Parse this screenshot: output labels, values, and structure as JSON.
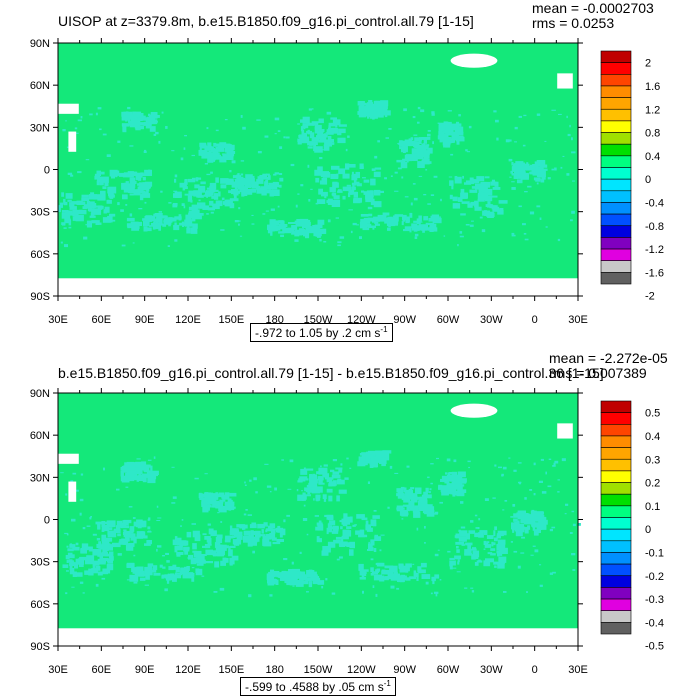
{
  "chart_data": [
    {
      "type": "heatmap",
      "title": "UISOP at z=3379.8m, b.e15.B1850.f09_g16.pi_control.all.79 [1-15]",
      "stats": {
        "mean": "mean = -0.0002703",
        "rms": "rms = 0.0253"
      },
      "units": {
        "text": "-.972 to 1.05 by .2 cm s",
        "exponent": "-1"
      },
      "x_tick_labels": [
        "30E",
        "60E",
        "90E",
        "120E",
        "150E",
        "180",
        "150W",
        "120W",
        "90W",
        "60W",
        "30W",
        "0",
        "30E"
      ],
      "y_tick_labels": [
        "90N",
        "60N",
        "30N",
        "0",
        "30S",
        "60S",
        "90S"
      ],
      "colorbar": {
        "labels": [
          "2",
          "1.6",
          "1.2",
          "0.8",
          "0.4",
          "0",
          "-0.4",
          "-0.8",
          "-1.2",
          "-1.6",
          "-2"
        ],
        "colors": [
          "#c00000",
          "#ff0000",
          "#ff4500",
          "#ff8c00",
          "#ffa500",
          "#ffc000",
          "#ffff00",
          "#a0e000",
          "#00e000",
          "#00ff80",
          "#00ffd0",
          "#00e5ff",
          "#00c0ff",
          "#0090ff",
          "#0050ff",
          "#0000e0",
          "#8000c0",
          "#e000e0",
          "#c8c8c8",
          "#606060"
        ]
      },
      "ocean_color": "#14e87a",
      "anomaly_color": "#2ee8c8"
    },
    {
      "type": "heatmap",
      "title": "b.e15.B1850.f09_g16.pi_control.all.79 [1-15] - b.e15.B1850.f09_g16.pi_control.36 [1-15]",
      "stats": {
        "mean": "mean = -2.272e-05",
        "rms": "rms = 0.007389"
      },
      "units": {
        "text": "-.599 to .4588 by .05 cm s",
        "exponent": "-1"
      },
      "x_tick_labels": [
        "30E",
        "60E",
        "90E",
        "120E",
        "150E",
        "180",
        "150W",
        "120W",
        "90W",
        "60W",
        "30W",
        "0",
        "30E"
      ],
      "y_tick_labels": [
        "90N",
        "60N",
        "30N",
        "0",
        "30S",
        "60S",
        "90S"
      ],
      "colorbar": {
        "labels": [
          "0.5",
          "0.4",
          "0.3",
          "0.2",
          "0.1",
          "0",
          "-0.1",
          "-0.2",
          "-0.3",
          "-0.4",
          "-0.5"
        ],
        "colors": [
          "#c00000",
          "#ff0000",
          "#ff4500",
          "#ff8c00",
          "#ffa500",
          "#ffc000",
          "#ffff00",
          "#a0e000",
          "#00e000",
          "#00ff80",
          "#00ffd0",
          "#00e5ff",
          "#00c0ff",
          "#0090ff",
          "#0050ff",
          "#0000e0",
          "#8000c0",
          "#e000e0",
          "#c8c8c8",
          "#606060"
        ]
      },
      "ocean_color": "#14e87a",
      "anomaly_color": "#2ee8c8"
    }
  ]
}
